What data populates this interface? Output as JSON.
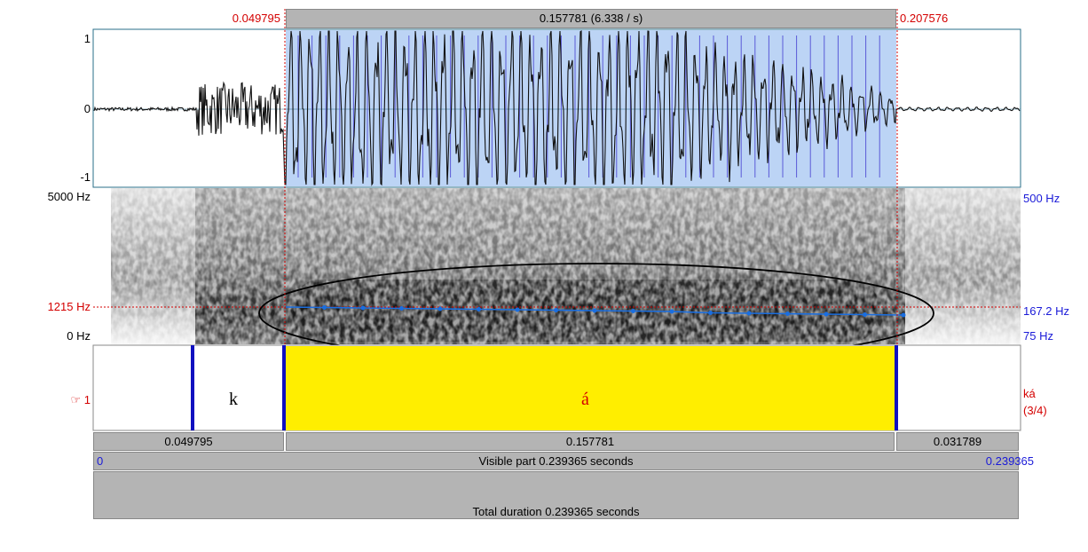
{
  "selection_bar": {
    "start": "0.049795",
    "duration": "0.157781 (6.338 / s)",
    "end": "0.207576"
  },
  "waveform": {
    "axis_labels": [
      "1",
      "0",
      "-1"
    ]
  },
  "spectrogram": {
    "left_labels": [
      "5000 Hz",
      "1215 Hz",
      "0 Hz"
    ],
    "right_labels": [
      "500 Hz",
      "167.2 Hz",
      "75 Hz"
    ]
  },
  "textgrid": {
    "tier_label": "☞ 1",
    "intervals": [
      "k",
      "á"
    ],
    "tier_info": [
      "ká",
      "(3/4)"
    ]
  },
  "duration_bar": [
    "0.049795",
    "0.157781",
    "0.031789"
  ],
  "visible_bar": {
    "start": "0",
    "label": "Visible part 0.239365 seconds",
    "end": "0.239365"
  },
  "total_bar": "Total duration 0.239365 seconds"
}
